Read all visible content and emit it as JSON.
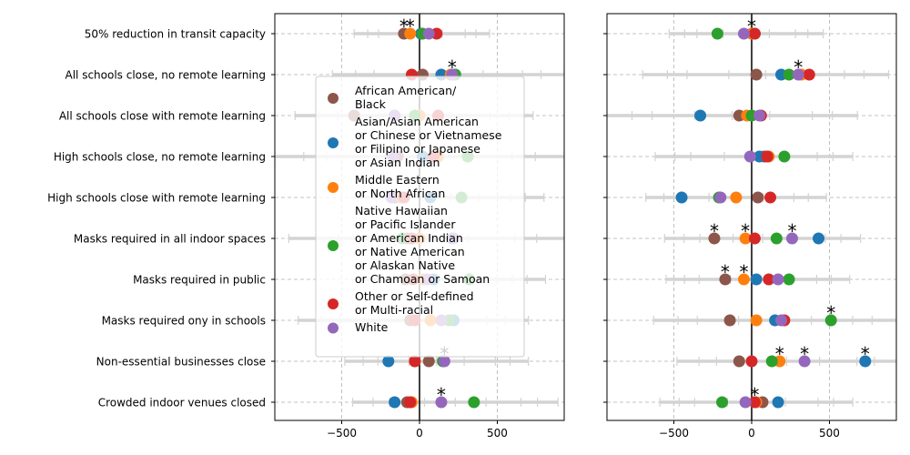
{
  "chart_data": {
    "type": "scatter",
    "xlim": [
      -930,
      930
    ],
    "x_ticks": [
      -500,
      0,
      500
    ],
    "grid": true,
    "legend_position": "center-left of first panel",
    "categories": [
      "50% reduction in transit capacity",
      "All schools close, no remote learning",
      "All schools close with remote learning",
      "High schools close, no remote learning",
      "High schools close with remote learning",
      "Masks required in all indoor spaces",
      "Masks required in public",
      "Masks required ony in schools",
      "Non-essential businesses close",
      "Crowded indoor venues closed"
    ],
    "series": [
      {
        "name": "African American/\nBlack",
        "color": "#8c564b"
      },
      {
        "name": "Asian/Asian American\nor Chinese or Vietnamese\nor Filipino or Japanese\nor Asian Indian",
        "color": "#1f77b4"
      },
      {
        "name": "Middle Eastern\nor North African",
        "color": "#ff7f0e"
      },
      {
        "name": "Native Hawaiian\nor Pacific Islander\nor American Indian\nor Native American\nor Alaskan Native\nor Chamoan or Samoan",
        "color": "#2ca02c"
      },
      {
        "name": "Other or Self-defined\nor Multi-racial",
        "color": "#d62728"
      },
      {
        "name": "White",
        "color": "#9467bd"
      }
    ],
    "panels": [
      {
        "values": [
          [
            -100,
            10,
            -60,
            20,
            110,
            60
          ],
          [
            20,
            140,
            200,
            230,
            -50,
            210
          ],
          [
            -420,
            -160,
            0,
            -30,
            120,
            -160
          ],
          [
            -140,
            20,
            120,
            310,
            90,
            -170
          ],
          [
            -160,
            70,
            -120,
            270,
            -100,
            -180
          ],
          [
            -80,
            210,
            0,
            -110,
            -50,
            220
          ],
          [
            -90,
            90,
            20,
            320,
            -40,
            50
          ],
          [
            -60,
            220,
            70,
            190,
            -30,
            140
          ],
          [
            60,
            -200,
            -30,
            150,
            -30,
            160
          ],
          [
            -80,
            -160,
            -50,
            350,
            -60,
            140
          ]
        ],
        "stars": [
          [
            0,
            -100
          ],
          [
            0,
            -60
          ],
          [
            1,
            210
          ],
          [
            8,
            160
          ],
          [
            9,
            140
          ]
        ]
      },
      {
        "values": [
          [
            20,
            0,
            0,
            -220,
            20,
            -50
          ],
          [
            30,
            190,
            320,
            240,
            370,
            300
          ],
          [
            -80,
            -330,
            -30,
            0,
            60,
            50
          ],
          [
            80,
            50,
            110,
            210,
            100,
            -10
          ],
          [
            40,
            -450,
            -100,
            -210,
            120,
            -200
          ],
          [
            -240,
            430,
            -40,
            160,
            20,
            260
          ],
          [
            -170,
            30,
            -50,
            240,
            110,
            170
          ],
          [
            -140,
            150,
            30,
            510,
            210,
            190
          ],
          [
            -80,
            730,
            180,
            130,
            0,
            340
          ],
          [
            70,
            170,
            30,
            -190,
            20,
            -40
          ]
        ],
        "stars": [
          [
            0,
            0
          ],
          [
            1,
            300
          ],
          [
            5,
            -240
          ],
          [
            5,
            -40
          ],
          [
            5,
            260
          ],
          [
            6,
            -170
          ],
          [
            6,
            -50
          ],
          [
            7,
            510
          ],
          [
            8,
            180
          ],
          [
            8,
            340
          ],
          [
            8,
            730
          ],
          [
            9,
            20
          ]
        ]
      }
    ],
    "ci_lines": [
      [
        [
          -420,
          450
        ],
        [
          -530,
          460
        ]
      ],
      [
        [
          -560,
          930
        ],
        [
          -700,
          880
        ]
      ],
      [
        [
          -800,
          730
        ],
        [
          -930,
          680
        ]
      ],
      [
        [
          -930,
          930
        ],
        [
          -620,
          650
        ]
      ],
      [
        [
          -400,
          800
        ],
        [
          -680,
          480
        ]
      ],
      [
        [
          -840,
          930
        ],
        [
          -560,
          700
        ]
      ],
      [
        [
          -380,
          810
        ],
        [
          -550,
          630
        ]
      ],
      [
        [
          -780,
          700
        ],
        [
          -630,
          930
        ]
      ],
      [
        [
          -480,
          700
        ],
        [
          -480,
          930
        ]
      ],
      [
        [
          -430,
          890
        ],
        [
          -590,
          650
        ]
      ]
    ]
  }
}
